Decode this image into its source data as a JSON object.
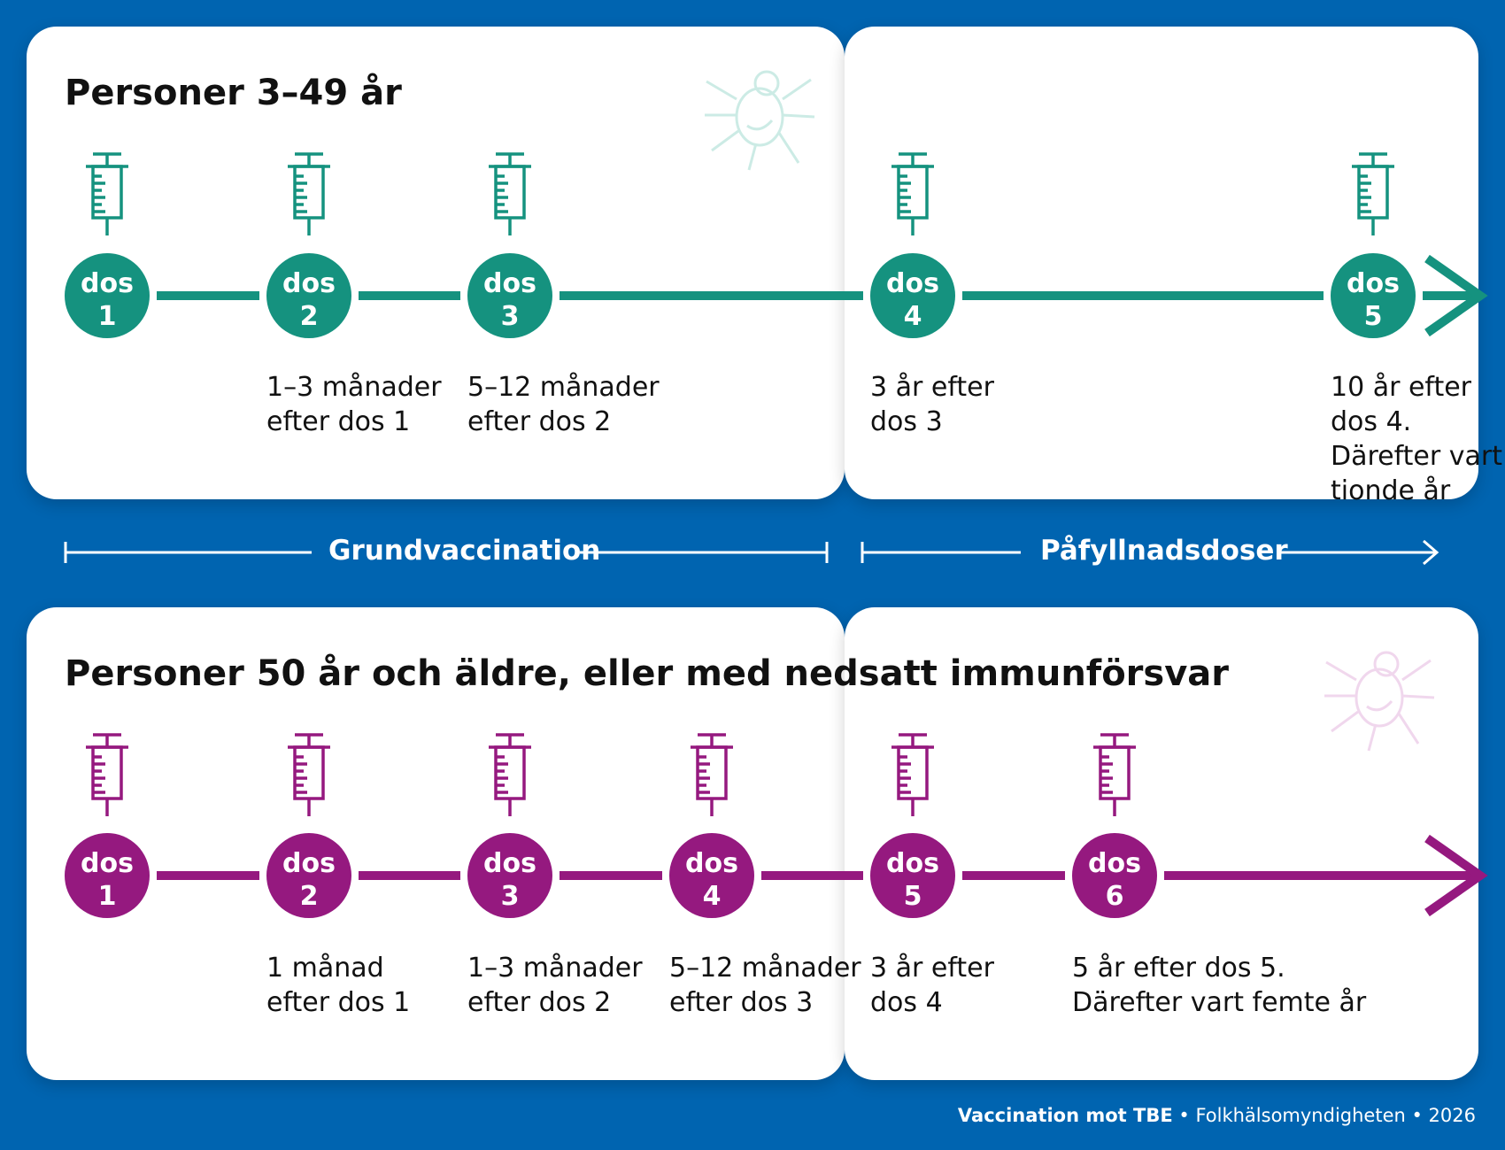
{
  "colors": {
    "teal": "#15927f",
    "purple": "#95197f",
    "blue": "#0064b0"
  },
  "row1": {
    "title": "Personer 3–49 år",
    "doses": [
      {
        "word": "dos",
        "num": "1",
        "label": ""
      },
      {
        "word": "dos",
        "num": "2",
        "label": "1–3 månader\nefter dos 1"
      },
      {
        "word": "dos",
        "num": "3",
        "label": "5–12 månader\nefter dos 2"
      },
      {
        "word": "dos",
        "num": "4",
        "label": "3 år efter\ndos 3"
      },
      {
        "word": "dos",
        "num": "5",
        "label": "10 år efter dos 4.\nDärefter vart\ntionde år"
      }
    ]
  },
  "row2": {
    "title": "Personer 50 år och äldre, eller med nedsatt immunförsvar",
    "doses": [
      {
        "word": "dos",
        "num": "1",
        "label": ""
      },
      {
        "word": "dos",
        "num": "2",
        "label": "1 månad\nefter dos 1"
      },
      {
        "word": "dos",
        "num": "3",
        "label": "1–3 månader\nefter dos 2"
      },
      {
        "word": "dos",
        "num": "4",
        "label": "5–12 månader\nefter dos 3"
      },
      {
        "word": "dos",
        "num": "5",
        "label": "3 år efter\ndos 4"
      },
      {
        "word": "dos",
        "num": "6",
        "label": "5 år efter dos 5.\nDärefter vart femte år"
      }
    ]
  },
  "phases": {
    "primary": "Grundvaccination",
    "booster": "Påfyllnadsdoser"
  },
  "footer": {
    "title": "Vaccination mot TBE",
    "org": "Folkhälsomyndigheten",
    "year": "2026"
  },
  "icons": [
    "syringe-icon",
    "tick-icon",
    "arrow-right-icon"
  ]
}
